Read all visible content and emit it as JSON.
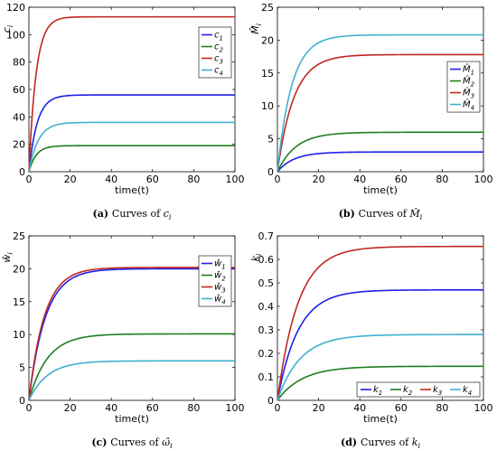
{
  "colors": {
    "blue": "#1f1fe6",
    "green": "#1e7f1e",
    "red": "#c0281e",
    "cyan": "#3fb1cf",
    "axis": "#000000"
  },
  "chart_data": [
    {
      "type": "line",
      "ylabel": "c_i",
      "xlabel": "time(t)",
      "caption_prefix": "(a)",
      "caption_text": "Curves of c_i",
      "xlim": [
        0,
        100
      ],
      "ylim": [
        0,
        120
      ],
      "xticks": [
        0,
        20,
        40,
        60,
        80,
        100
      ],
      "yticks": [
        0,
        20,
        40,
        60,
        80,
        100,
        120
      ],
      "legend_position": "top-right",
      "series": [
        {
          "name": "c1",
          "color": "#1f1fe6",
          "final": 56,
          "tau": 4.0
        },
        {
          "name": "c2",
          "color": "#1e7f1e",
          "final": 19,
          "tau": 3.5
        },
        {
          "name": "c3",
          "color": "#c0281e",
          "final": 113,
          "tau": 3.5
        },
        {
          "name": "c4",
          "color": "#3fb1cf",
          "final": 36,
          "tau": 4.5
        }
      ]
    },
    {
      "type": "line",
      "ylabel": "M̂_i",
      "xlabel": "time(t)",
      "caption_prefix": "(b)",
      "caption_text": "Curves of M̂_i",
      "xlim": [
        0,
        100
      ],
      "ylim": [
        0,
        25
      ],
      "xticks": [
        0,
        20,
        40,
        60,
        80,
        100
      ],
      "yticks": [
        0,
        5,
        10,
        15,
        20,
        25
      ],
      "legend_position": "right",
      "series": [
        {
          "name": "M̂1",
          "color": "#1f1fe6",
          "final": 3,
          "tau": 8
        },
        {
          "name": "M̂2",
          "color": "#1e7f1e",
          "final": 6,
          "tau": 9
        },
        {
          "name": "M̂3",
          "color": "#c0281e",
          "final": 17.8,
          "tau": 8
        },
        {
          "name": "M̂4",
          "color": "#3fb1cf",
          "final": 20.8,
          "tau": 7
        }
      ]
    },
    {
      "type": "line",
      "ylabel": "ŵ_i",
      "xlabel": "time(t)",
      "caption_prefix": "(c)",
      "caption_text": "Curves of ω̂_i",
      "xlim": [
        0,
        100
      ],
      "ylim": [
        0,
        25
      ],
      "xticks": [
        0,
        20,
        40,
        60,
        80,
        100
      ],
      "yticks": [
        0,
        5,
        10,
        15,
        20,
        25
      ],
      "legend_position": "top-right",
      "series": [
        {
          "name": "ŵ1",
          "color": "#1f1fe6",
          "final": 20.0,
          "tau": 8
        },
        {
          "name": "ŵ2",
          "color": "#1e7f1e",
          "final": 10.1,
          "tau": 9
        },
        {
          "name": "ŵ3",
          "color": "#c0281e",
          "final": 20.2,
          "tau": 7.5
        },
        {
          "name": "ŵ4",
          "color": "#3fb1cf",
          "final": 6.0,
          "tau": 9
        }
      ]
    },
    {
      "type": "line",
      "ylabel": "k_i",
      "xlabel": "time(t)",
      "caption_prefix": "(d)",
      "caption_text": "Curves of k_i",
      "xlim": [
        0,
        100
      ],
      "ylim": [
        0,
        0.7
      ],
      "xticks": [
        0,
        20,
        40,
        60,
        80,
        100
      ],
      "yticks": [
        0,
        0.1,
        0.2,
        0.3,
        0.4,
        0.5,
        0.6,
        0.7
      ],
      "legend_position": "bottom",
      "series": [
        {
          "name": "k1",
          "color": "#1f1fe6",
          "final": 0.47,
          "tau": 10
        },
        {
          "name": "k2",
          "color": "#1e7f1e",
          "final": 0.145,
          "tau": 12
        },
        {
          "name": "k3",
          "color": "#c0281e",
          "final": 0.655,
          "tau": 10
        },
        {
          "name": "k4",
          "color": "#3fb1cf",
          "final": 0.28,
          "tau": 11
        }
      ]
    }
  ]
}
